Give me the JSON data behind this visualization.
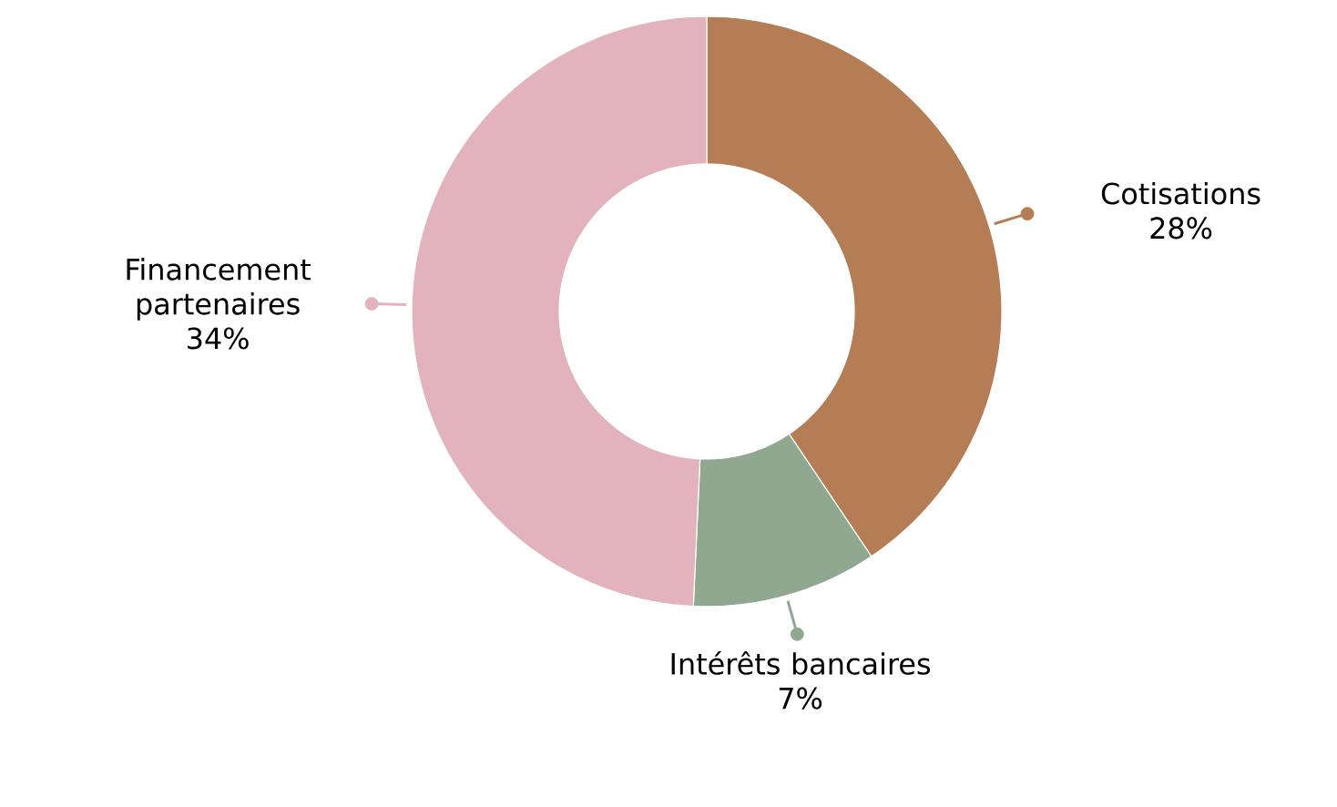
{
  "chart_data": {
    "type": "donut",
    "categories": [
      "Cotisations",
      "Intérêts bancaires",
      "Financement partenaires"
    ],
    "values": [
      28,
      7,
      34
    ],
    "value_labels": [
      "28%",
      "7%",
      "34%"
    ],
    "colors": [
      "#b57d56",
      "#8fa88f",
      "#e2b2bd"
    ]
  }
}
